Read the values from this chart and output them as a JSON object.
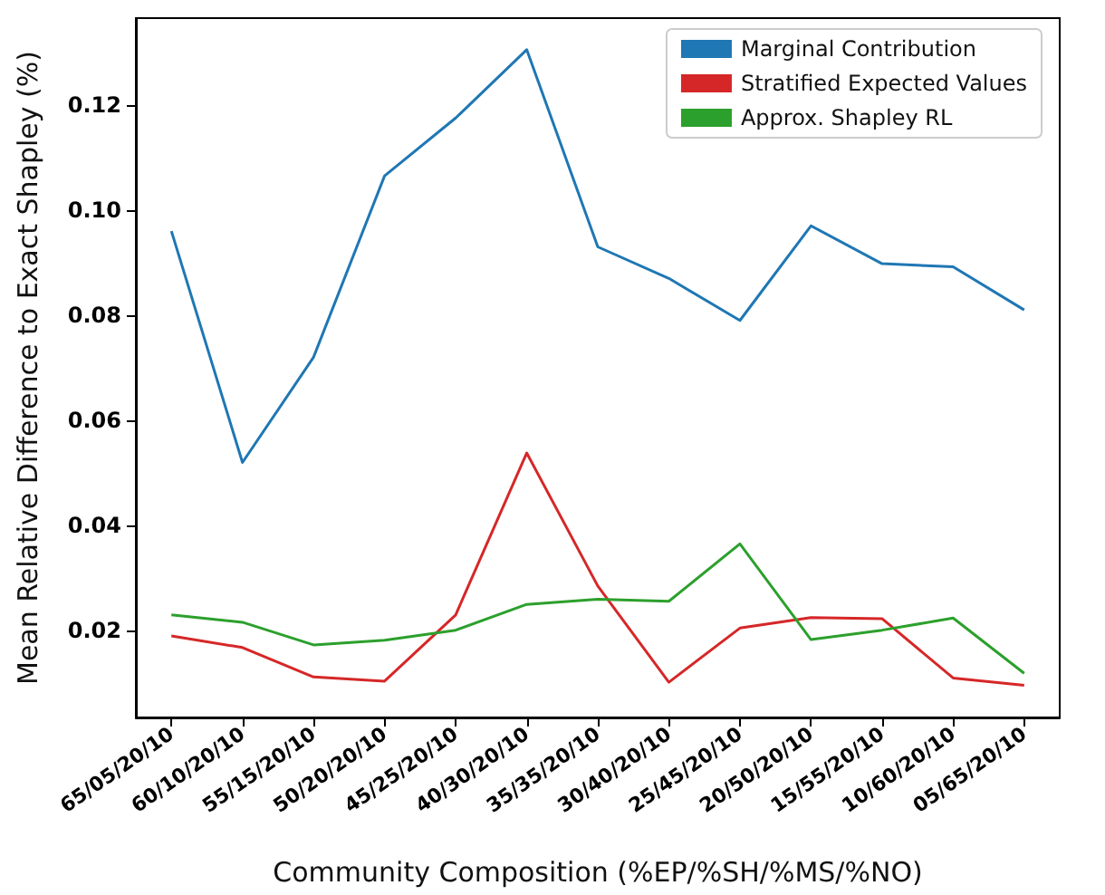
{
  "chart_data": {
    "type": "line",
    "xlabel": "Community Composition (%EP/%SH/%MS/%NO)",
    "ylabel": "Mean Relative Difference to Exact Shapley (%)",
    "categories": [
      "65/05/20/10",
      "60/10/20/10",
      "55/15/20/10",
      "50/20/20/10",
      "45/25/20/10",
      "40/30/20/10",
      "35/35/20/10",
      "30/40/20/10",
      "25/45/20/10",
      "20/50/20/10",
      "15/55/20/10",
      "10/60/20/10",
      "05/65/20/10"
    ],
    "series": [
      {
        "name": "Marginal Contribution",
        "color": "#1f77b4",
        "values": [
          0.096,
          0.052,
          0.072,
          0.1065,
          0.1175,
          0.1305,
          0.093,
          0.087,
          0.079,
          0.097,
          0.0898,
          0.0892,
          0.081
        ]
      },
      {
        "name": "Stratified Expected Values",
        "color": "#d62728",
        "values": [
          0.019,
          0.0168,
          0.0112,
          0.0104,
          0.023,
          0.0538,
          0.0285,
          0.0102,
          0.0205,
          0.0225,
          0.0223,
          0.011,
          0.0096
        ]
      },
      {
        "name": "Approx. Shapley RL",
        "color": "#2ca02c",
        "values": [
          0.023,
          0.0216,
          0.0173,
          0.0182,
          0.0201,
          0.025,
          0.026,
          0.0256,
          0.0365,
          0.0183,
          0.0201,
          0.0224,
          0.0119
        ]
      }
    ],
    "ylim": [
      0.0035,
      0.1365
    ],
    "yticks": [
      {
        "value": 0.02,
        "label": "0.02"
      },
      {
        "value": 0.04,
        "label": "0.04"
      },
      {
        "value": 0.06,
        "label": "0.06"
      },
      {
        "value": 0.08,
        "label": "0.08"
      },
      {
        "value": 0.1,
        "label": "0.10"
      },
      {
        "value": 0.12,
        "label": "0.12"
      }
    ],
    "grid": false,
    "legend": "top right",
    "marker": "none",
    "line_style": "solid"
  }
}
